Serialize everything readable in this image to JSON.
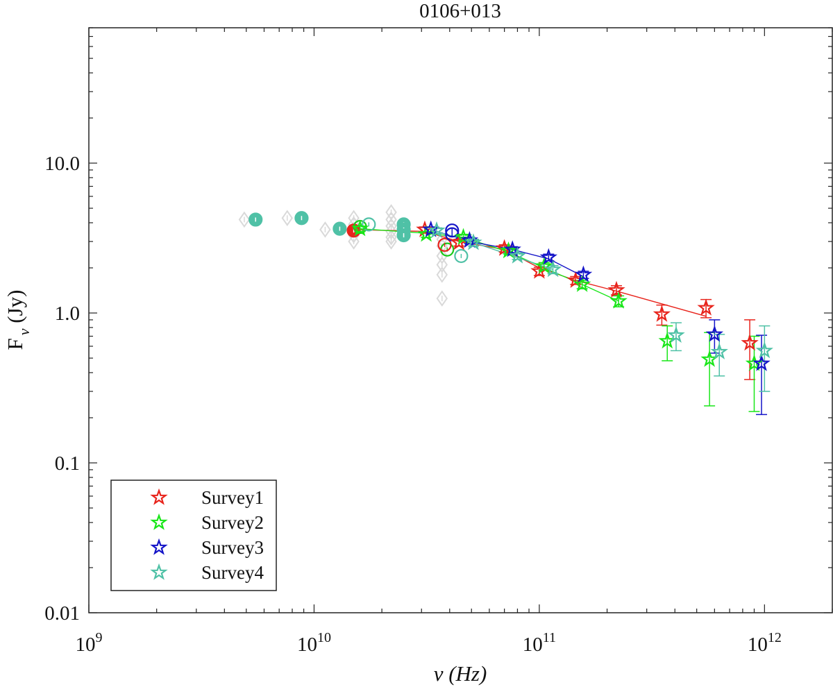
{
  "chart_data": {
    "type": "scatter",
    "title": "0106+013",
    "xlabel": "ν (Hz)",
    "ylabel": "F",
    "ylabel_sub": "ν",
    "ylabel_unit": " (Jy)",
    "x_scale": "log",
    "y_scale": "log",
    "xlim": [
      1000000000.0,
      2000000000000.0
    ],
    "ylim": [
      0.01,
      80
    ],
    "grid": false,
    "legend_position": "bottom-left",
    "x_ticks": [
      {
        "value": 1000000000.0,
        "base": "10",
        "exp": "9"
      },
      {
        "value": 10000000000.0,
        "base": "10",
        "exp": "10"
      },
      {
        "value": 100000000000.0,
        "base": "10",
        "exp": "11"
      },
      {
        "value": 1000000000000.0,
        "base": "10",
        "exp": "12"
      }
    ],
    "y_ticks": [
      {
        "value": 0.01,
        "label": "0.01"
      },
      {
        "value": 0.1,
        "label": "0.1"
      },
      {
        "value": 1,
        "label": "1.0"
      },
      {
        "value": 10,
        "label": "10.0"
      }
    ],
    "archival_data": {
      "color": "#d9d9d9",
      "points": [
        [
          4900000000.0,
          4.2
        ],
        [
          7600000000.0,
          4.3
        ],
        [
          11200000000.0,
          3.6
        ],
        [
          15000000000.0,
          3.9
        ],
        [
          15000000000.0,
          3.6
        ],
        [
          15000000000.0,
          3.3
        ],
        [
          15000000000.0,
          3.0
        ],
        [
          15000000000.0,
          4.3
        ],
        [
          22000000000.0,
          4.7
        ],
        [
          22000000000.0,
          4.2
        ],
        [
          22000000000.0,
          3.8
        ],
        [
          22000000000.0,
          3.5
        ],
        [
          22000000000.0,
          3.2
        ],
        [
          22000000000.0,
          3.0
        ],
        [
          37000000000.0,
          3.1
        ],
        [
          37000000000.0,
          2.8
        ],
        [
          37000000000.0,
          2.4
        ],
        [
          37000000000.0,
          2.1
        ],
        [
          37000000000.0,
          1.8
        ],
        [
          37000000000.0,
          1.25
        ]
      ]
    },
    "circle_series": [
      {
        "color": "#4fc1a6",
        "filled": true,
        "points": [
          [
            5500000000.0,
            4.2
          ],
          [
            8800000000.0,
            4.3
          ],
          [
            13000000000.0,
            3.65
          ],
          [
            25000000000.0,
            3.9
          ],
          [
            25000000000.0,
            3.6
          ],
          [
            25000000000.0,
            3.3
          ]
        ]
      },
      {
        "color": "#e8241c",
        "filled": true,
        "points": [
          [
            15000000000.0,
            3.55
          ]
        ]
      },
      {
        "color": "#19c919",
        "filled": false,
        "points": [
          [
            16000000000.0,
            3.75
          ],
          [
            39000000000.0,
            2.65
          ]
        ]
      },
      {
        "color": "#4fc1a6",
        "filled": false,
        "points": [
          [
            17500000000.0,
            3.9
          ],
          [
            45000000000.0,
            2.4
          ]
        ]
      },
      {
        "color": "#e8241c",
        "filled": false,
        "points": [
          [
            38000000000.0,
            2.85
          ]
        ]
      },
      {
        "color": "#1414c8",
        "filled": false,
        "points": [
          [
            41000000000.0,
            3.55
          ],
          [
            41000000000.0,
            3.35
          ]
        ]
      }
    ],
    "series": [
      {
        "name": "Survey1",
        "color": "#e8241c",
        "points": [
          {
            "x": 31000000000.0,
            "y": 3.6,
            "lo": 0.15,
            "hi": 0.15
          },
          {
            "x": 44000000000.0,
            "y": 2.95,
            "lo": 0.15,
            "hi": 0.15
          },
          {
            "x": 70000000000.0,
            "y": 2.7,
            "lo": 0.15,
            "hi": 0.15
          },
          {
            "x": 100000000000.0,
            "y": 1.9,
            "lo": 0.12,
            "hi": 0.12
          },
          {
            "x": 145000000000.0,
            "y": 1.65,
            "lo": 0.1,
            "hi": 0.1
          },
          {
            "x": 220000000000.0,
            "y": 1.42,
            "lo": 0.1,
            "hi": 0.1
          },
          {
            "x": 350000000000.0,
            "y": 0.98,
            "lo": 0.15,
            "hi": 0.15
          },
          {
            "x": 550000000000.0,
            "y": 1.08,
            "lo": 0.15,
            "hi": 0.15
          },
          {
            "x": 860000000000.0,
            "y": 0.63,
            "lo": 0.27,
            "hi": 0.27
          }
        ],
        "line": [
          [
            15500000000.0,
            3.6
          ],
          [
            31000000000.0,
            3.5
          ],
          [
            44000000000.0,
            3.0
          ],
          [
            70000000000.0,
            2.65
          ],
          [
            100000000000.0,
            2.0
          ],
          [
            145000000000.0,
            1.65
          ],
          [
            220000000000.0,
            1.4
          ],
          [
            550000000000.0,
            0.95
          ]
        ]
      },
      {
        "name": "Survey2",
        "color": "#19e619",
        "points": [
          {
            "x": 16000000000.0,
            "y": 3.65,
            "lo": 0.15,
            "hi": 0.15
          },
          {
            "x": 31500000000.0,
            "y": 3.35,
            "lo": 0.15,
            "hi": 0.15
          },
          {
            "x": 46000000000.0,
            "y": 3.2,
            "lo": 0.15,
            "hi": 0.15
          },
          {
            "x": 73000000000.0,
            "y": 2.6,
            "lo": 0.12,
            "hi": 0.12
          },
          {
            "x": 105000000000.0,
            "y": 2.05,
            "lo": 0.12,
            "hi": 0.12
          },
          {
            "x": 155000000000.0,
            "y": 1.55,
            "lo": 0.1,
            "hi": 0.1
          },
          {
            "x": 225000000000.0,
            "y": 1.2,
            "lo": 0.1,
            "hi": 0.1
          },
          {
            "x": 370000000000.0,
            "y": 0.65,
            "lo": 0.17,
            "hi": 0.17
          },
          {
            "x": 570000000000.0,
            "y": 0.49,
            "lo": 0.25,
            "hi": 0.25
          },
          {
            "x": 900000000000.0,
            "y": 0.46,
            "lo": 0.24,
            "hi": 0.24
          }
        ],
        "line": [
          [
            16000000000.0,
            3.65
          ],
          [
            31500000000.0,
            3.4
          ],
          [
            46000000000.0,
            3.2
          ],
          [
            73000000000.0,
            2.55
          ],
          [
            105000000000.0,
            2.0
          ],
          [
            155000000000.0,
            1.55
          ],
          [
            225000000000.0,
            1.2
          ]
        ]
      },
      {
        "name": "Survey3",
        "color": "#1414c8",
        "points": [
          {
            "x": 33000000000.0,
            "y": 3.6,
            "lo": 0.15,
            "hi": 0.15
          },
          {
            "x": 49000000000.0,
            "y": 3.05,
            "lo": 0.15,
            "hi": 0.15
          },
          {
            "x": 76000000000.0,
            "y": 2.65,
            "lo": 0.12,
            "hi": 0.12
          },
          {
            "x": 110000000000.0,
            "y": 2.35,
            "lo": 0.12,
            "hi": 0.12
          },
          {
            "x": 157000000000.0,
            "y": 1.8,
            "lo": 0.1,
            "hi": 0.1
          },
          {
            "x": 600000000000.0,
            "y": 0.72,
            "lo": 0.18,
            "hi": 0.18
          },
          {
            "x": 970000000000.0,
            "y": 0.46,
            "lo": 0.25,
            "hi": 0.25
          }
        ],
        "line": [
          [
            33000000000.0,
            3.6
          ],
          [
            49000000000.0,
            3.0
          ],
          [
            76000000000.0,
            2.65
          ],
          [
            110000000000.0,
            2.3
          ],
          [
            157000000000.0,
            1.75
          ]
        ]
      },
      {
        "name": "Survey4",
        "color": "#4fc1a6",
        "points": [
          {
            "x": 35000000000.0,
            "y": 3.55,
            "lo": 0.15,
            "hi": 0.15
          },
          {
            "x": 51000000000.0,
            "y": 2.95,
            "lo": 0.15,
            "hi": 0.15
          },
          {
            "x": 80000000000.0,
            "y": 2.4,
            "lo": 0.12,
            "hi": 0.12
          },
          {
            "x": 115000000000.0,
            "y": 1.95,
            "lo": 0.12,
            "hi": 0.12
          },
          {
            "x": 405000000000.0,
            "y": 0.71,
            "lo": 0.15,
            "hi": 0.15
          },
          {
            "x": 630000000000.0,
            "y": 0.55,
            "lo": 0.17,
            "hi": 0.17
          },
          {
            "x": 1000000000000.0,
            "y": 0.56,
            "lo": 0.26,
            "hi": 0.26
          }
        ],
        "line": [
          [
            35000000000.0,
            3.5
          ],
          [
            51000000000.0,
            2.95
          ],
          [
            80000000000.0,
            2.35
          ],
          [
            115000000000.0,
            1.95
          ]
        ]
      }
    ]
  }
}
